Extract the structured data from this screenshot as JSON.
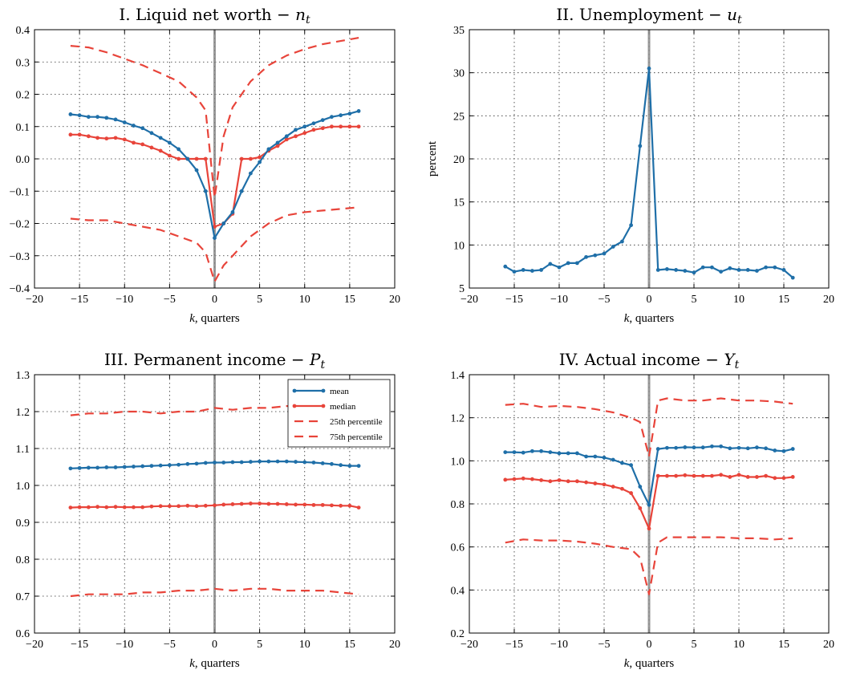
{
  "chart_data": [
    {
      "type": "line",
      "title": {
        "main": "I. Liquid net worth − ",
        "var": "n",
        "sub": "t"
      },
      "xlabel": {
        "var": "k",
        "rest": ", quarters"
      },
      "ylabel": "",
      "xlim": [
        -20,
        20
      ],
      "ylim": [
        -0.4,
        0.4
      ],
      "xticks": [
        -20,
        -15,
        -10,
        -5,
        0,
        5,
        10,
        15,
        20
      ],
      "yticks": [
        -0.4,
        -0.3,
        -0.2,
        -0.1,
        0.0,
        0.1,
        0.2,
        0.3,
        0.4
      ],
      "ytick_decimals": 1,
      "grid": true,
      "vline_x": 0,
      "legend": null,
      "series": [
        {
          "name": "75th percentile",
          "style": "dashed",
          "x": [
            -16,
            -14,
            -12,
            -10,
            -8,
            -6,
            -4,
            -2,
            -1,
            0,
            1,
            2,
            4,
            6,
            8,
            10,
            12,
            14,
            16
          ],
          "y": [
            0.35,
            0.345,
            0.33,
            0.31,
            0.29,
            0.265,
            0.24,
            0.19,
            0.15,
            -0.12,
            0.07,
            0.16,
            0.24,
            0.29,
            0.32,
            0.34,
            0.355,
            0.365,
            0.375
          ]
        },
        {
          "name": "median",
          "style": "solid-marker",
          "x": [
            -16,
            -15,
            -14,
            -13,
            -12,
            -11,
            -10,
            -9,
            -8,
            -7,
            -6,
            -5,
            -4,
            -3,
            -2,
            -1,
            0,
            1,
            2,
            3,
            4,
            5,
            6,
            7,
            8,
            9,
            10,
            11,
            12,
            13,
            14,
            15,
            16
          ],
          "y": [
            0.075,
            0.075,
            0.07,
            0.065,
            0.063,
            0.065,
            0.06,
            0.05,
            0.045,
            0.035,
            0.025,
            0.01,
            0.0,
            0.0,
            0.0,
            0.0,
            -0.21,
            -0.2,
            -0.17,
            0.0,
            0.0,
            0.005,
            0.025,
            0.04,
            0.06,
            0.07,
            0.08,
            0.09,
            0.095,
            0.1,
            0.1,
            0.1,
            0.1
          ]
        },
        {
          "name": "mean",
          "style": "solid-marker",
          "x": [
            -16,
            -15,
            -14,
            -13,
            -12,
            -11,
            -10,
            -9,
            -8,
            -7,
            -6,
            -5,
            -4,
            -3,
            -2,
            -1,
            0,
            1,
            2,
            3,
            4,
            5,
            6,
            7,
            8,
            9,
            10,
            11,
            12,
            13,
            14,
            15,
            16
          ],
          "y": [
            0.138,
            0.135,
            0.13,
            0.13,
            0.127,
            0.122,
            0.113,
            0.103,
            0.095,
            0.08,
            0.065,
            0.05,
            0.03,
            0.0,
            -0.035,
            -0.1,
            -0.245,
            -0.2,
            -0.165,
            -0.1,
            -0.045,
            -0.01,
            0.03,
            0.05,
            0.07,
            0.09,
            0.1,
            0.11,
            0.12,
            0.13,
            0.135,
            0.14,
            0.148
          ]
        },
        {
          "name": "25th percentile",
          "style": "dashed",
          "x": [
            -16,
            -14,
            -12,
            -10,
            -8,
            -6,
            -4,
            -2,
            -1,
            0,
            1,
            2,
            4,
            6,
            8,
            10,
            12,
            14,
            16
          ],
          "y": [
            -0.185,
            -0.19,
            -0.19,
            -0.2,
            -0.21,
            -0.22,
            -0.24,
            -0.26,
            -0.29,
            -0.38,
            -0.33,
            -0.3,
            -0.24,
            -0.2,
            -0.175,
            -0.165,
            -0.16,
            -0.155,
            -0.15
          ]
        }
      ]
    },
    {
      "type": "line",
      "title": {
        "main": "II. Unemployment − ",
        "var": "u",
        "sub": "t"
      },
      "xlabel": {
        "var": "k",
        "rest": ", quarters"
      },
      "ylabel": "percent",
      "xlim": [
        -20,
        20
      ],
      "ylim": [
        5,
        35
      ],
      "xticks": [
        -20,
        -15,
        -10,
        -5,
        0,
        5,
        10,
        15,
        20
      ],
      "yticks": [
        5,
        10,
        15,
        20,
        25,
        30,
        35
      ],
      "ytick_decimals": 0,
      "grid": true,
      "vline_x": 0,
      "legend": null,
      "series": [
        {
          "name": "mean",
          "style": "solid-marker",
          "x": [
            -16,
            -15,
            -14,
            -13,
            -12,
            -11,
            -10,
            -9,
            -8,
            -7,
            -6,
            -5,
            -4,
            -3,
            -2,
            -1,
            0,
            1,
            2,
            3,
            4,
            5,
            6,
            7,
            8,
            9,
            10,
            11,
            12,
            13,
            14,
            15,
            16
          ],
          "y": [
            7.5,
            6.9,
            7.1,
            7.0,
            7.1,
            7.8,
            7.4,
            7.9,
            7.9,
            8.6,
            8.8,
            9.0,
            9.8,
            10.4,
            12.3,
            21.5,
            30.5,
            7.1,
            7.2,
            7.1,
            7.0,
            6.8,
            7.4,
            7.4,
            6.9,
            7.3,
            7.1,
            7.1,
            7.0,
            7.4,
            7.4,
            7.1,
            6.2
          ]
        }
      ]
    },
    {
      "type": "line",
      "title": {
        "main": "III. Permanent income − ",
        "var": "P",
        "sub": "t"
      },
      "xlabel": {
        "var": "k",
        "rest": ", quarters"
      },
      "ylabel": "",
      "xlim": [
        -20,
        20
      ],
      "ylim": [
        0.6,
        1.3
      ],
      "xticks": [
        -20,
        -15,
        -10,
        -5,
        0,
        5,
        10,
        15,
        20
      ],
      "yticks": [
        0.6,
        0.7,
        0.8,
        0.9,
        1.0,
        1.1,
        1.2,
        1.3
      ],
      "ytick_decimals": 1,
      "grid": true,
      "vline_x": 0,
      "legend": {
        "position": "top-right",
        "entries": [
          {
            "label": "mean",
            "style": "solid-marker",
            "color": "#1f6fa8"
          },
          {
            "label": "median",
            "style": "solid-marker",
            "color": "#e8443a"
          },
          {
            "label": "25th percentile",
            "style": "dashed",
            "color": "#e8443a"
          },
          {
            "label": "75th percentile",
            "style": "dashed",
            "color": "#e8443a"
          }
        ]
      },
      "series": [
        {
          "name": "75th percentile",
          "style": "dashed",
          "x": [
            -16,
            -14,
            -12,
            -10,
            -8,
            -6,
            -4,
            -2,
            0,
            2,
            4,
            6,
            8,
            10,
            12,
            14,
            16
          ],
          "y": [
            1.19,
            1.195,
            1.195,
            1.2,
            1.2,
            1.195,
            1.2,
            1.2,
            1.21,
            1.205,
            1.21,
            1.21,
            1.215,
            1.215,
            1.22,
            1.215,
            1.215
          ]
        },
        {
          "name": "mean",
          "style": "solid-marker",
          "x": [
            -16,
            -15,
            -14,
            -13,
            -12,
            -11,
            -10,
            -9,
            -8,
            -7,
            -6,
            -5,
            -4,
            -3,
            -2,
            -1,
            0,
            1,
            2,
            3,
            4,
            5,
            6,
            7,
            8,
            9,
            10,
            11,
            12,
            13,
            14,
            15,
            16
          ],
          "y": [
            1.046,
            1.047,
            1.048,
            1.048,
            1.049,
            1.049,
            1.05,
            1.051,
            1.052,
            1.053,
            1.054,
            1.055,
            1.056,
            1.058,
            1.059,
            1.061,
            1.062,
            1.062,
            1.063,
            1.063,
            1.064,
            1.065,
            1.065,
            1.065,
            1.065,
            1.064,
            1.063,
            1.062,
            1.06,
            1.058,
            1.055,
            1.053,
            1.053
          ]
        },
        {
          "name": "median",
          "style": "solid-marker",
          "x": [
            -16,
            -15,
            -14,
            -13,
            -12,
            -11,
            -10,
            -9,
            -8,
            -7,
            -6,
            -5,
            -4,
            -3,
            -2,
            -1,
            0,
            1,
            2,
            3,
            4,
            5,
            6,
            7,
            8,
            9,
            10,
            11,
            12,
            13,
            14,
            15,
            16
          ],
          "y": [
            0.94,
            0.941,
            0.941,
            0.942,
            0.941,
            0.942,
            0.941,
            0.941,
            0.941,
            0.943,
            0.944,
            0.944,
            0.944,
            0.945,
            0.944,
            0.945,
            0.946,
            0.948,
            0.949,
            0.95,
            0.951,
            0.951,
            0.95,
            0.95,
            0.949,
            0.948,
            0.948,
            0.947,
            0.947,
            0.946,
            0.945,
            0.945,
            0.94
          ]
        },
        {
          "name": "25th percentile",
          "style": "dashed",
          "x": [
            -16,
            -14,
            -12,
            -10,
            -8,
            -6,
            -4,
            -2,
            0,
            2,
            4,
            6,
            8,
            10,
            12,
            14,
            16
          ],
          "y": [
            0.7,
            0.705,
            0.705,
            0.705,
            0.71,
            0.71,
            0.715,
            0.715,
            0.72,
            0.715,
            0.72,
            0.72,
            0.715,
            0.715,
            0.715,
            0.71,
            0.705
          ]
        }
      ]
    },
    {
      "type": "line",
      "title": {
        "main": "IV. Actual income − ",
        "var": "Y",
        "sub": "t"
      },
      "xlabel": {
        "var": "k",
        "rest": ", quarters"
      },
      "ylabel": "",
      "xlim": [
        -20,
        20
      ],
      "ylim": [
        0.2,
        1.4
      ],
      "xticks": [
        -20,
        -15,
        -10,
        -5,
        0,
        5,
        10,
        15,
        20
      ],
      "yticks": [
        0.2,
        0.4,
        0.6,
        0.8,
        1.0,
        1.2,
        1.4
      ],
      "ytick_decimals": 1,
      "grid": true,
      "vline_x": 0,
      "legend": null,
      "series": [
        {
          "name": "75th percentile",
          "style": "dashed",
          "x": [
            -16,
            -14,
            -12,
            -10,
            -8,
            -6,
            -4,
            -2,
            -1,
            0,
            1,
            2,
            4,
            6,
            8,
            10,
            12,
            14,
            16
          ],
          "y": [
            1.26,
            1.265,
            1.25,
            1.255,
            1.25,
            1.24,
            1.225,
            1.2,
            1.18,
            1.02,
            1.28,
            1.29,
            1.28,
            1.28,
            1.29,
            1.28,
            1.28,
            1.275,
            1.265
          ]
        },
        {
          "name": "mean",
          "style": "solid-marker",
          "x": [
            -16,
            -15,
            -14,
            -13,
            -12,
            -11,
            -10,
            -9,
            -8,
            -7,
            -6,
            -5,
            -4,
            -3,
            -2,
            -1,
            0,
            1,
            2,
            3,
            4,
            5,
            6,
            7,
            8,
            9,
            10,
            11,
            12,
            13,
            14,
            15,
            16
          ],
          "y": [
            1.04,
            1.04,
            1.038,
            1.045,
            1.045,
            1.04,
            1.035,
            1.035,
            1.035,
            1.02,
            1.02,
            1.015,
            1.005,
            0.99,
            0.98,
            0.88,
            0.795,
            1.055,
            1.06,
            1.06,
            1.063,
            1.062,
            1.062,
            1.067,
            1.067,
            1.058,
            1.06,
            1.058,
            1.062,
            1.058,
            1.048,
            1.045,
            1.055
          ]
        },
        {
          "name": "median",
          "style": "solid-marker",
          "x": [
            -16,
            -15,
            -14,
            -13,
            -12,
            -11,
            -10,
            -9,
            -8,
            -7,
            -6,
            -5,
            -4,
            -3,
            -2,
            -1,
            0,
            1,
            2,
            3,
            4,
            5,
            6,
            7,
            8,
            9,
            10,
            11,
            12,
            13,
            14,
            15,
            16
          ],
          "y": [
            0.912,
            0.915,
            0.918,
            0.915,
            0.91,
            0.905,
            0.91,
            0.905,
            0.905,
            0.9,
            0.895,
            0.89,
            0.88,
            0.87,
            0.85,
            0.78,
            0.685,
            0.93,
            0.93,
            0.93,
            0.933,
            0.93,
            0.93,
            0.93,
            0.935,
            0.925,
            0.935,
            0.925,
            0.925,
            0.93,
            0.92,
            0.92,
            0.925
          ]
        },
        {
          "name": "25th percentile",
          "style": "dashed",
          "x": [
            -16,
            -14,
            -12,
            -10,
            -8,
            -6,
            -4,
            -2,
            -1,
            0,
            1,
            2,
            4,
            6,
            8,
            10,
            12,
            14,
            16
          ],
          "y": [
            0.62,
            0.635,
            0.63,
            0.63,
            0.625,
            0.615,
            0.6,
            0.59,
            0.55,
            0.38,
            0.62,
            0.645,
            0.645,
            0.645,
            0.645,
            0.64,
            0.64,
            0.635,
            0.64
          ]
        }
      ]
    }
  ],
  "colors": {
    "mean": "#1f6fa8",
    "median": "#e8443a",
    "percentile": "#e8443a",
    "grid": "#2a2a2a",
    "vline": "#888888"
  }
}
